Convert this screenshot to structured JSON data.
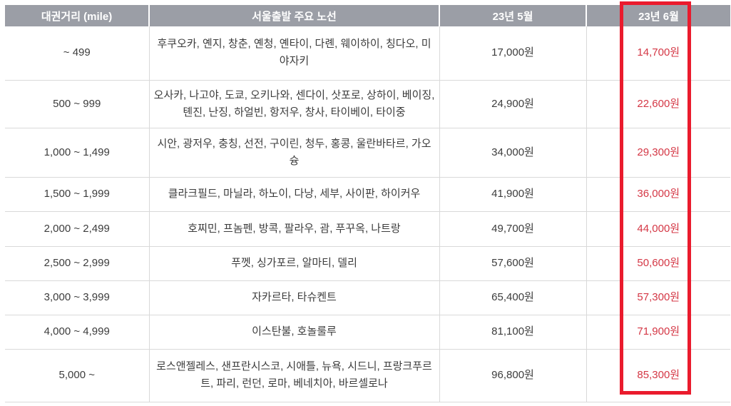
{
  "colors": {
    "header_bg": "#9b9ea6",
    "header_text": "#ffffff",
    "body_text": "#3c3c3c",
    "grid_border": "#d9d9d9",
    "june_price_text": "#d43745",
    "highlight_box_border": "#ea1b2d"
  },
  "chart_data": {
    "type": "table",
    "title": "",
    "highlighted_column": "23년 6월",
    "columns": [
      "대권거리 (mile)",
      "서울출발 주요 노선",
      "23년 5월",
      "23년 6월"
    ],
    "rows": [
      {
        "distance": "~ 499",
        "routes": "후쿠오카, 옌지, 창춘, 옌청, 옌타이, 다롄, 웨이하이, 칭다오, 미야자키",
        "price_may": "17,000원",
        "price_june": "14,700원"
      },
      {
        "distance": "500 ~ 999",
        "routes": "오사카, 나고야, 도쿄, 오키나와, 센다이, 삿포로, 상하이, 베이징, 톈진, 난징, 하얼빈, 항저우, 창사, 타이베이, 타이중",
        "price_may": "24,900원",
        "price_june": "22,600원"
      },
      {
        "distance": "1,000 ~ 1,499",
        "routes": "시안, 광저우, 충칭, 선전, 구이린, 청두, 홍콩, 울란바타르, 가오슝",
        "price_may": "34,000원",
        "price_june": "29,300원"
      },
      {
        "distance": "1,500 ~ 1,999",
        "routes": "클라크필드, 마닐라, 하노이, 다낭, 세부, 사이판, 하이커우",
        "price_may": "41,900원",
        "price_june": "36,000원"
      },
      {
        "distance": "2,000 ~ 2,499",
        "routes": "호찌민, 프놈펜, 방콕, 팔라우, 괌, 푸꾸옥, 나트랑",
        "price_may": "49,700원",
        "price_june": "44,000원"
      },
      {
        "distance": "2,500 ~ 2,999",
        "routes": "푸껫, 싱가포르, 알마티, 델리",
        "price_may": "57,600원",
        "price_june": "50,600원"
      },
      {
        "distance": "3,000 ~ 3,999",
        "routes": "자카르타, 타슈켄트",
        "price_may": "65,400원",
        "price_june": "57,300원"
      },
      {
        "distance": "4,000 ~ 4,999",
        "routes": "이스탄불, 호놀룰루",
        "price_may": "81,100원",
        "price_june": "71,900원"
      },
      {
        "distance": "5,000 ~",
        "routes": "로스앤젤레스, 샌프란시스코, 시애틀, 뉴욕, 시드니, 프랑크푸르트, 파리, 런던, 로마, 베네치아, 바르셀로나",
        "price_may": "96,800원",
        "price_june": "85,300원"
      }
    ]
  }
}
